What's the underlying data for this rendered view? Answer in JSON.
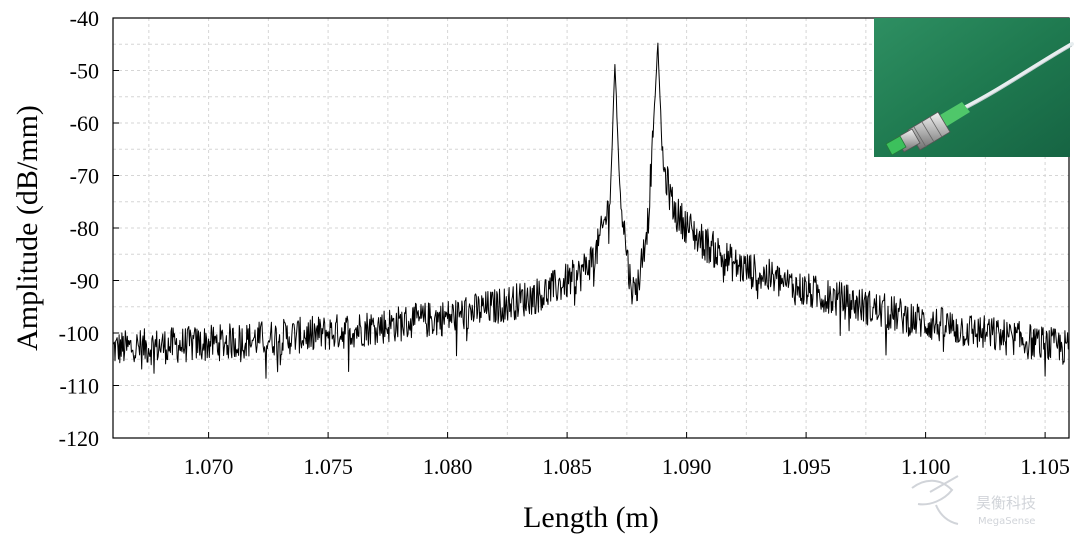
{
  "chart_data": {
    "type": "line",
    "title": "",
    "xlabel": "Length (m)",
    "ylabel": "Amplitude (dB/mm)",
    "xlim": [
      1.066,
      1.106
    ],
    "ylim": [
      -120,
      -40
    ],
    "grid": true,
    "x_ticks": [
      1.07,
      1.075,
      1.08,
      1.085,
      1.09,
      1.095,
      1.1,
      1.105
    ],
    "x_tick_labels": [
      "1.070",
      "1.075",
      "1.080",
      "1.085",
      "1.090",
      "1.095",
      "1.100",
      "1.105"
    ],
    "y_ticks": [
      -40,
      -50,
      -60,
      -70,
      -80,
      -90,
      -100,
      -110,
      -120
    ],
    "y_tick_labels": [
      "-40",
      "-50",
      "-60",
      "-70",
      "-80",
      "-90",
      "-100",
      "-110",
      "-120"
    ],
    "series": [
      {
        "name": "Amplitude",
        "color": "#000000",
        "noise_amplitude_db": 3.5,
        "x": [
          1.066,
          1.07,
          1.075,
          1.08,
          1.082,
          1.084,
          1.0855,
          1.0862,
          1.0868,
          1.087,
          1.0872,
          1.0876,
          1.0878,
          1.088,
          1.0884,
          1.0886,
          1.0888,
          1.089,
          1.0895,
          1.0905,
          1.092,
          1.095,
          1.1,
          1.106
        ],
        "values": [
          -103,
          -102,
          -100,
          -97,
          -95,
          -92.5,
          -89,
          -85,
          -75,
          -48.5,
          -72,
          -89,
          -92.5,
          -90,
          -78,
          -62,
          -45,
          -68,
          -77,
          -82,
          -87,
          -92,
          -98,
          -103
        ]
      }
    ],
    "inset_image": "connector-photo"
  },
  "watermark": {
    "text": "昊衡科技",
    "subtext": "MegaSense"
  }
}
